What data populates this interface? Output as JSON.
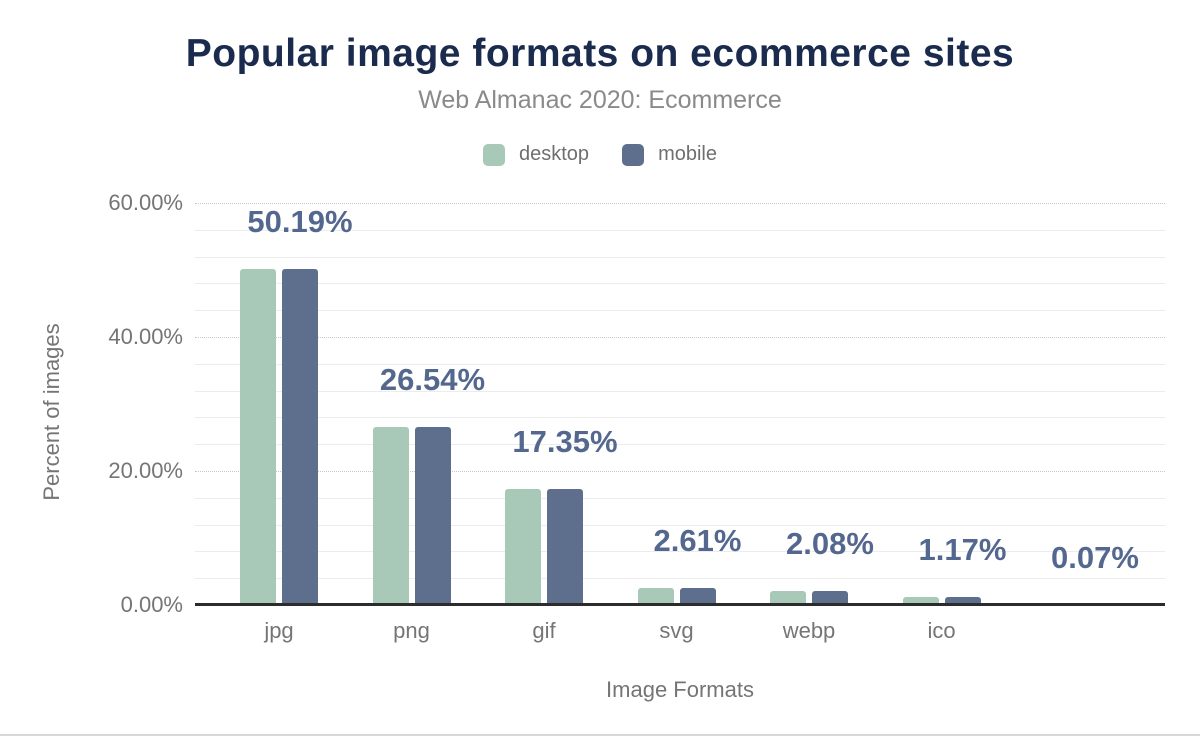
{
  "figure": {
    "title": "Popular image formats on ecommerce sites",
    "subtitle": "Web Almanac 2020: Ecommerce"
  },
  "legend": [
    {
      "label": "desktop",
      "color_key": "desktop"
    },
    {
      "label": "mobile",
      "color_key": "mobile"
    }
  ],
  "colors": {
    "title": "#1a2b4e",
    "subtitle": "#8a8a8a",
    "desktop": "#a8c9b8",
    "mobile": "#5e6f8d",
    "data_label": "#54688f",
    "axis_text": "#757575",
    "axis_line": "#2c2c2c",
    "grid_major": "#c9c9c9",
    "grid_minor": "#ececec",
    "legend_text": "#6f6f6f",
    "divider": "#d8d8d8"
  },
  "chart_data": {
    "type": "bar",
    "title": "Popular image formats on ecommerce sites",
    "subtitle": "Web Almanac 2020: Ecommerce",
    "categories": [
      "jpg",
      "png",
      "gif",
      "svg",
      "webp",
      "ico",
      ""
    ],
    "series": [
      {
        "name": "desktop",
        "values": [
          50.19,
          26.54,
          17.35,
          2.61,
          2.08,
          1.17,
          0.07
        ]
      },
      {
        "name": "mobile",
        "values": [
          50.19,
          26.54,
          17.35,
          2.61,
          2.08,
          1.17,
          0.07
        ]
      }
    ],
    "data_labels": [
      "50.19%",
      "26.54%",
      "17.35%",
      "2.61%",
      "2.08%",
      "1.17%",
      "0.07%"
    ],
    "data_labels_note": "one shared label per category, centered above the mobile bar",
    "xlabel": "Image Formats",
    "ylabel": "Percent of images",
    "ylim": [
      0,
      60
    ],
    "yticks": [
      {
        "pct": 0,
        "label": "0.00%"
      },
      {
        "pct": 20,
        "label": "20.00%"
      },
      {
        "pct": 40,
        "label": "40.00%"
      },
      {
        "pct": 60,
        "label": "60.00%"
      }
    ],
    "y_major_step": 20,
    "y_minor_step": 4,
    "grid": "major gridlines dotted every 20%, faint solid minor gridlines every 4%",
    "legend_position": "top-center"
  }
}
